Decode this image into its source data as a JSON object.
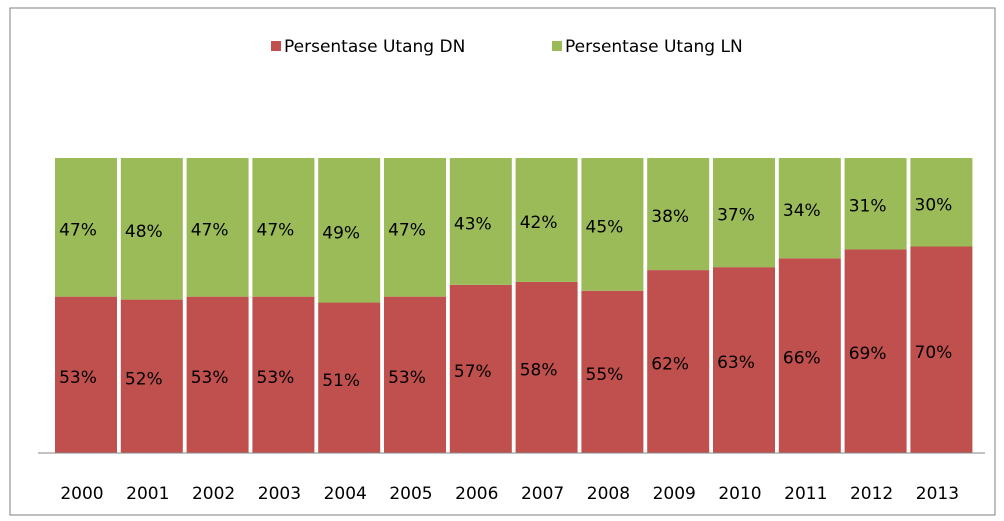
{
  "chart_data": {
    "type": "stacked_bar",
    "categories": [
      "2000",
      "2001",
      "2002",
      "2003",
      "2004",
      "2005",
      "2006",
      "2007",
      "2008",
      "2009",
      "2010",
      "2011",
      "2012",
      "2013"
    ],
    "series": [
      {
        "name": "Persentase Utang DN",
        "color": "#c0504d",
        "values": [
          53,
          52,
          53,
          53,
          51,
          53,
          57,
          58,
          55,
          62,
          63,
          66,
          69,
          70
        ],
        "value_labels": [
          "53%",
          "52%",
          "53%",
          "53%",
          "51%",
          "53%",
          "57%",
          "58%",
          "55%",
          "62%",
          "63%",
          "66%",
          "69%",
          "70%"
        ]
      },
      {
        "name": "Persentase Utang LN",
        "color": "#9bbb59",
        "values": [
          47,
          48,
          47,
          47,
          49,
          47,
          43,
          42,
          45,
          38,
          37,
          34,
          31,
          30
        ],
        "value_labels": [
          "47%",
          "48%",
          "47%",
          "47%",
          "49%",
          "47%",
          "43%",
          "42%",
          "45%",
          "38%",
          "37%",
          "34%",
          "31%",
          "30%"
        ]
      }
    ],
    "ylim": [
      0,
      100
    ],
    "legend": "top"
  }
}
